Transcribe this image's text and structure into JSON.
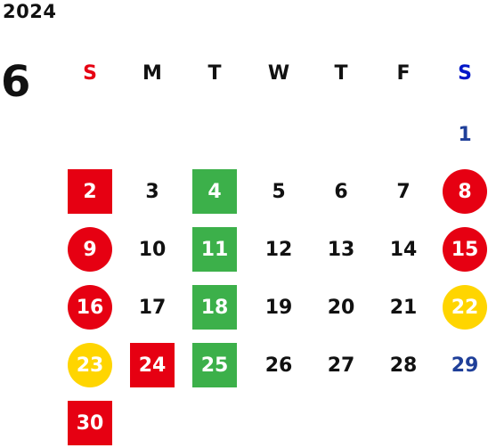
{
  "year": "2024",
  "month": "6",
  "weekdays": [
    "S",
    "M",
    "T",
    "W",
    "T",
    "F",
    "S"
  ],
  "colors": {
    "holiday_red": "#e60012",
    "green_mark": "#3cb04a",
    "yellow_mark": "#ffd500",
    "saturday_blue": "#1f3f99"
  },
  "days": [
    "1",
    "2",
    "3",
    "4",
    "5",
    "6",
    "7",
    "8",
    "9",
    "10",
    "11",
    "12",
    "13",
    "14",
    "15",
    "16",
    "17",
    "18",
    "19",
    "20",
    "21",
    "22",
    "23",
    "24",
    "25",
    "26",
    "27",
    "28",
    "29",
    "30"
  ]
}
